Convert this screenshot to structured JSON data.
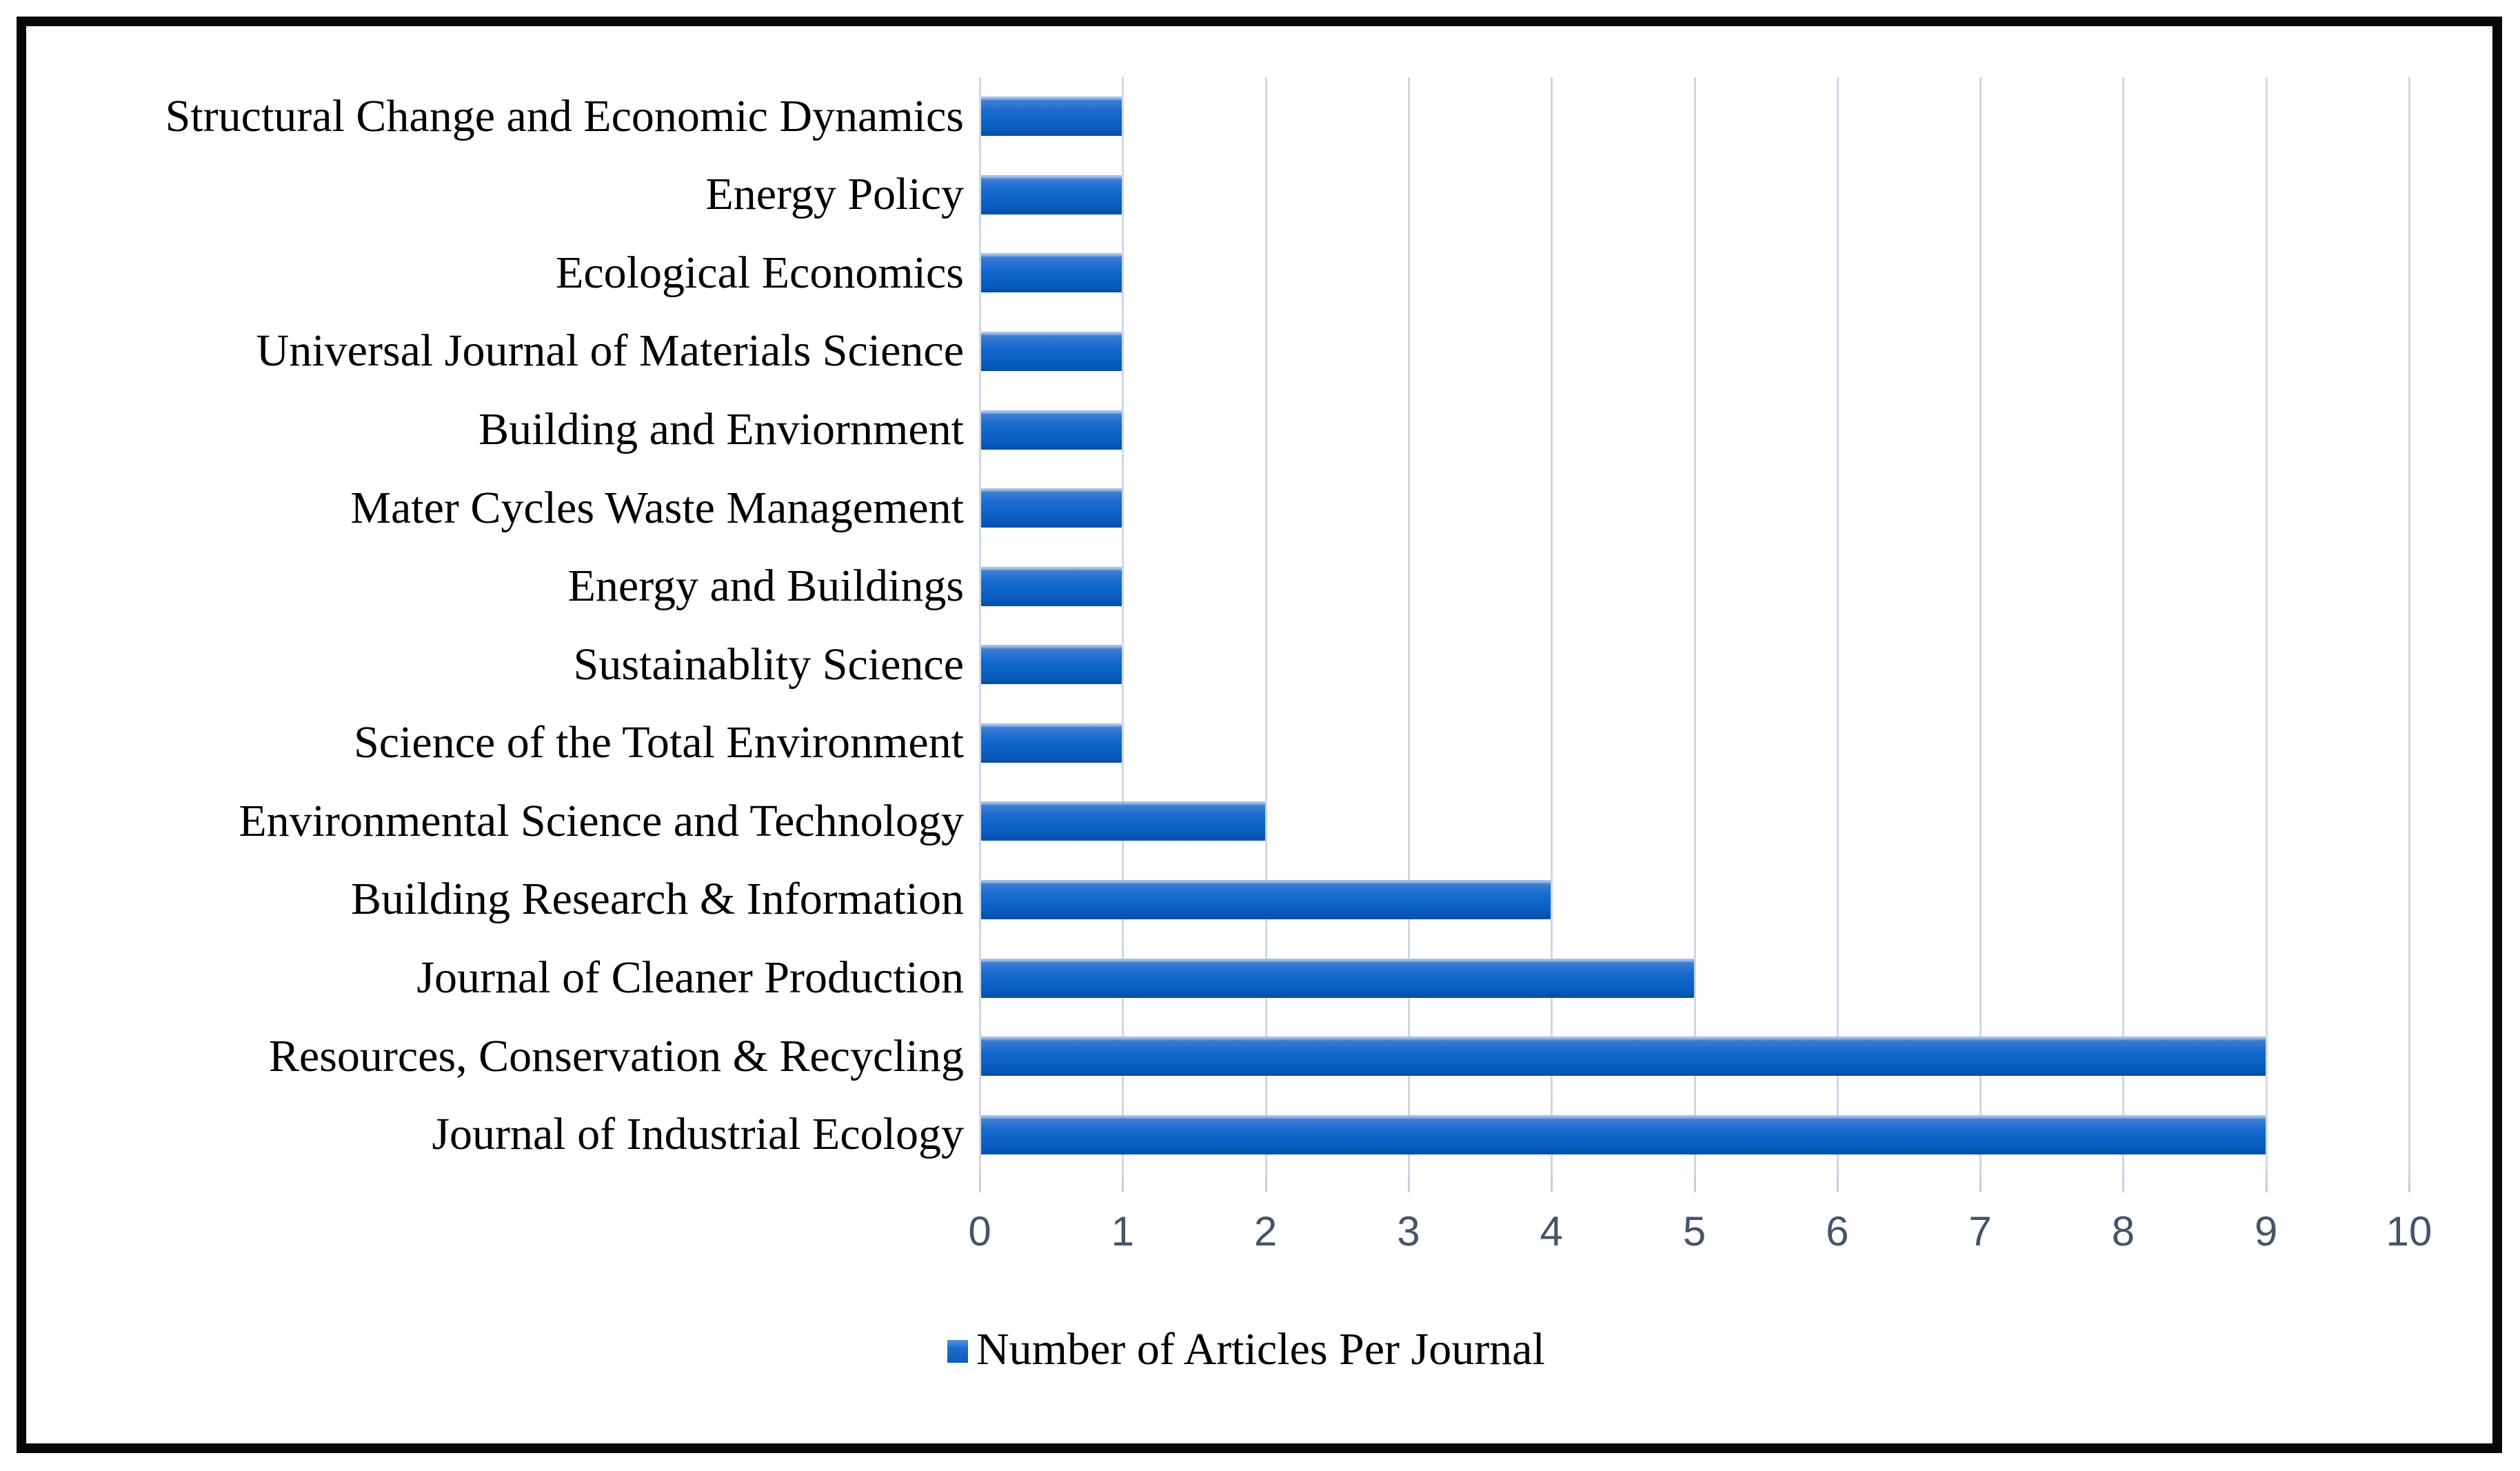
{
  "chart_data": {
    "type": "bar",
    "orientation": "horizontal",
    "title": "",
    "xlabel": "",
    "ylabel": "",
    "categories": [
      "Structural Change and Economic Dynamics",
      "Energy Policy",
      "Ecological Economics",
      "Universal Journal of Materials Science",
      "Building and Enviornment",
      "Mater Cycles Waste Management",
      "Energy and Buildings",
      "Sustainablity Science",
      "Science of the Total Environment",
      "Environmental Science and Technology",
      "Building Research & Information",
      "Journal of Cleaner Production",
      "Resources, Conservation & Recycling",
      "Journal of Industrial Ecology"
    ],
    "values": [
      1,
      1,
      1,
      1,
      1,
      1,
      1,
      1,
      1,
      2,
      4,
      5,
      9,
      9
    ],
    "x_ticks": [
      "0",
      "1",
      "2",
      "3",
      "4",
      "5",
      "6",
      "7",
      "8",
      "9",
      "10"
    ],
    "xlim": [
      0,
      10
    ],
    "grid": "vertical",
    "legend_position": "bottom"
  },
  "legend": {
    "label": "Number of Articles Per Journal"
  },
  "colors": {
    "bar_fill": "#0d63c8",
    "bar_highlight": "#a3c0e8",
    "gridline": "#cdd8e7",
    "tick_label": "#44546a",
    "category_label": "#000000",
    "frame_border": "#070707",
    "background": "#ffffff"
  }
}
